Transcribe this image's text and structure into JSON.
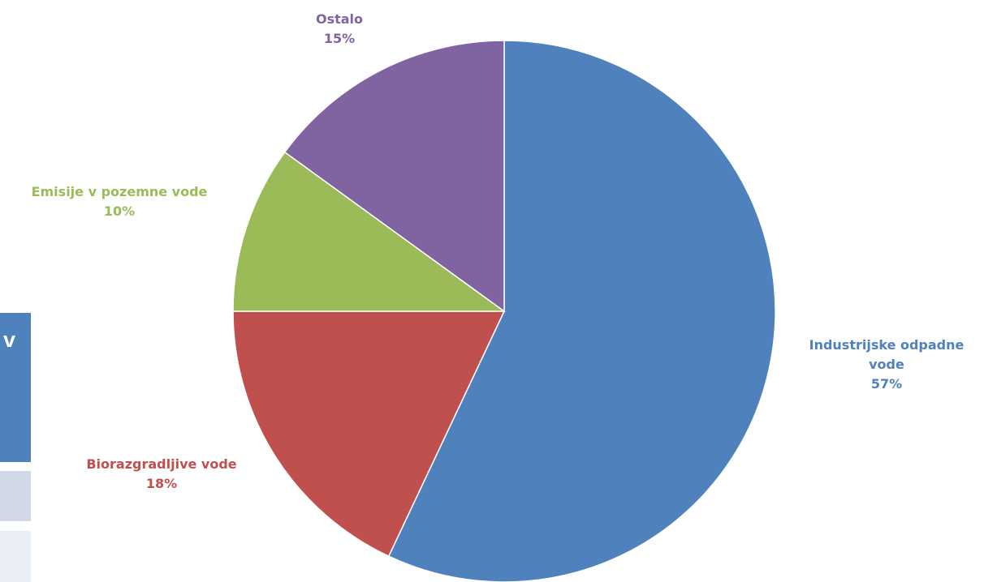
{
  "chart_data": {
    "type": "pie",
    "title": "",
    "start_angle_deg": 0,
    "direction": "clockwise",
    "slices": [
      {
        "label_lines": [
          "Industrijske odpadne",
          "vode"
        ],
        "value": 57,
        "percent_label": "57%",
        "color": "#4f81bd"
      },
      {
        "label_lines": [
          "Biorazgradljive vode"
        ],
        "value": 18,
        "percent_label": "18%",
        "color": "#c0504d"
      },
      {
        "label_lines": [
          "Emisije v pozemne vode"
        ],
        "value": 10,
        "percent_label": "10%",
        "color": "#9bbb59"
      },
      {
        "label_lines": [
          "Ostalo"
        ],
        "value": 15,
        "percent_label": "15%",
        "color": "#8064a2"
      }
    ]
  },
  "side_table": {
    "header_text": "v",
    "header_color": "#4f81bd",
    "row_colors": [
      "#d0d8e8",
      "#e9edf4"
    ]
  }
}
